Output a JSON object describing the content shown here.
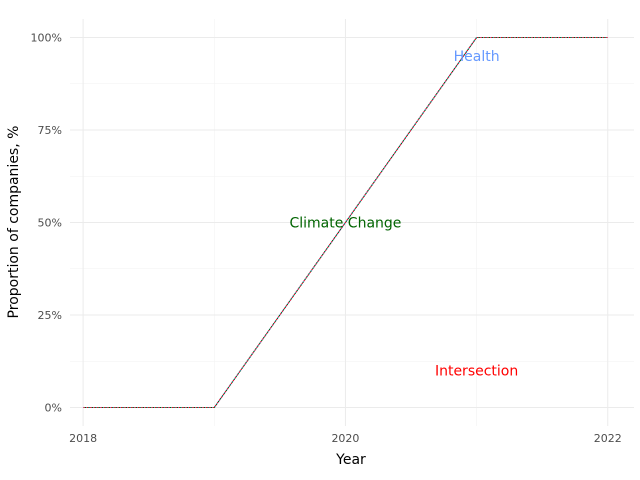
{
  "chart_data": {
    "type": "line",
    "title": "",
    "xlabel": "Year",
    "ylabel": "Proportion of companies, %",
    "x": [
      2018,
      2019,
      2020,
      2021,
      2022
    ],
    "xticks": [
      2018,
      2020,
      2022
    ],
    "xlim": [
      2017.9,
      2022.2
    ],
    "ylim": [
      -0.05,
      1.05
    ],
    "yticks": [
      0,
      0.25,
      0.5,
      0.75,
      1
    ],
    "ytick_labels": [
      "0%",
      "25%",
      "50%",
      "75%",
      "100%"
    ],
    "grid": true,
    "legend": "none",
    "series": [
      {
        "name": "Health",
        "values": [
          0,
          0,
          0.5,
          1,
          1
        ],
        "color": "#6699ff",
        "dash": "solid"
      },
      {
        "name": "Climate Change",
        "values": [
          0,
          0,
          0.5,
          1,
          1
        ],
        "color": "#006400",
        "dash": "dotted"
      },
      {
        "name": "Intersection",
        "values": [
          0,
          0,
          0.5,
          1,
          1
        ],
        "color": "#ff0000",
        "dash": "dotted"
      }
    ],
    "annotations": [
      {
        "text": "Health",
        "x": 2021,
        "y": 0.95,
        "color": "#6699ff"
      },
      {
        "text": "Climate Change",
        "x": 2020,
        "y": 0.5,
        "color": "#006400"
      },
      {
        "text": "Intersection",
        "x": 2021,
        "y": 0.1,
        "color": "#ff0000"
      }
    ]
  }
}
